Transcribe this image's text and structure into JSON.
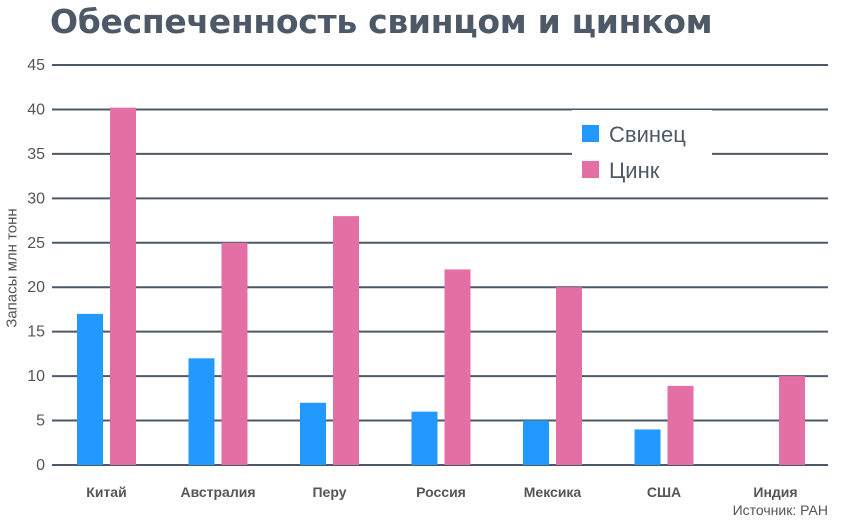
{
  "chart_data": {
    "type": "bar",
    "title": "Обеспеченность свинцом и цинком",
    "ylabel": "Запасы млн тонн",
    "source": "Источник: РАН",
    "ylim": [
      0,
      45
    ],
    "yticks": [
      0,
      5,
      10,
      15,
      20,
      25,
      30,
      35,
      40,
      45
    ],
    "categories": [
      "Китай",
      "Австралия",
      "Перу",
      "Россия",
      "Мексика",
      "США",
      "Индия"
    ],
    "series": [
      {
        "name": "Свинец",
        "color": "#2299ff",
        "values": [
          17,
          12,
          7,
          6,
          5,
          4,
          null
        ]
      },
      {
        "name": "Цинк",
        "color": "#e36fa5",
        "values": [
          40.2,
          25,
          28,
          22,
          20,
          8.9,
          10
        ]
      }
    ],
    "grid": true,
    "legend_position": "top-right"
  }
}
